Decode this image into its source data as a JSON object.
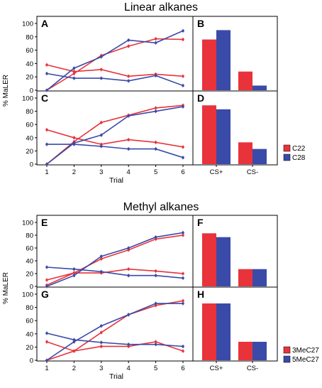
{
  "colors": {
    "red": "#e8333b",
    "blue": "#3a4aa8"
  },
  "chart_data": [
    {
      "group": "Linear alkanes",
      "panel": "A",
      "type": "line",
      "title": "Linear alkanes",
      "xlabel": "",
      "ylabel": "% MaLER",
      "x": [
        1,
        2,
        3,
        4,
        5,
        6
      ],
      "xlim": [
        0.7,
        6.3
      ],
      "ylim": [
        0,
        100
      ],
      "yticks": [
        0,
        20,
        40,
        60,
        80,
        100
      ],
      "series": [
        {
          "name": "C22",
          "role": "CS+",
          "color": "red",
          "values": [
            0,
            25,
            52,
            66,
            77,
            76
          ]
        },
        {
          "name": "C22",
          "role": "CS-",
          "color": "red",
          "values": [
            38,
            28,
            31,
            21,
            24,
            21
          ]
        },
        {
          "name": "C28",
          "role": "CS+",
          "color": "blue",
          "values": [
            0,
            33,
            50,
            75,
            71,
            89
          ]
        },
        {
          "name": "C28",
          "role": "CS-",
          "color": "blue",
          "values": [
            25,
            18,
            18,
            14,
            22,
            7
          ]
        }
      ]
    },
    {
      "group": "Linear alkanes",
      "panel": "B",
      "type": "bar",
      "categories": [
        "CS+",
        "CS-"
      ],
      "ylim": [
        0,
        100
      ],
      "show_xticks": false,
      "series": [
        {
          "name": "C22",
          "color": "red",
          "values": [
            76,
            28
          ]
        },
        {
          "name": "C28",
          "color": "blue",
          "values": [
            90,
            7
          ]
        }
      ]
    },
    {
      "group": "Linear alkanes",
      "panel": "C",
      "type": "line",
      "xlabel": "Trial",
      "ylabel": "% MaLER",
      "x": [
        1,
        2,
        3,
        4,
        5,
        6
      ],
      "xlim": [
        0.7,
        6.3
      ],
      "ylim": [
        0,
        100
      ],
      "yticks": [
        0,
        20,
        40,
        60,
        80,
        100
      ],
      "series": [
        {
          "name": "C22",
          "role": "CS+",
          "color": "red",
          "values": [
            0,
            34,
            63,
            74,
            85,
            89
          ]
        },
        {
          "name": "C22",
          "role": "CS-",
          "color": "red",
          "values": [
            52,
            40,
            30,
            37,
            33,
            26
          ]
        },
        {
          "name": "C28",
          "role": "CS+",
          "color": "blue",
          "values": [
            0,
            32,
            44,
            73,
            80,
            87
          ]
        },
        {
          "name": "C28",
          "role": "CS-",
          "color": "blue",
          "values": [
            30,
            30,
            27,
            23,
            23,
            10
          ]
        }
      ]
    },
    {
      "group": "Linear alkanes",
      "panel": "D",
      "type": "bar",
      "categories": [
        "CS+",
        "CS-"
      ],
      "ylim": [
        0,
        100
      ],
      "show_xticks": true,
      "series": [
        {
          "name": "C22",
          "color": "red",
          "values": [
            89,
            33
          ]
        },
        {
          "name": "C28",
          "color": "blue",
          "values": [
            83,
            23
          ]
        }
      ]
    },
    {
      "group": "Methyl alkanes",
      "panel": "E",
      "type": "line",
      "title": "Methyl alkanes",
      "xlabel": "",
      "ylabel": "% MaLER",
      "x": [
        1,
        2,
        3,
        4,
        5,
        6
      ],
      "xlim": [
        0.7,
        6.3
      ],
      "ylim": [
        0,
        100
      ],
      "yticks": [
        0,
        20,
        40,
        60,
        80,
        100
      ],
      "series": [
        {
          "name": "3MeC27",
          "role": "CS+",
          "color": "red",
          "values": [
            2,
            21,
            43,
            57,
            74,
            80
          ]
        },
        {
          "name": "3MeC27",
          "role": "CS-",
          "color": "red",
          "values": [
            10,
            21,
            21,
            27,
            24,
            20
          ]
        },
        {
          "name": "5MeC27",
          "role": "CS+",
          "color": "blue",
          "values": [
            0,
            17,
            47,
            60,
            77,
            84
          ]
        },
        {
          "name": "5MeC27",
          "role": "CS-",
          "color": "blue",
          "values": [
            30,
            27,
            23,
            17,
            17,
            13
          ]
        }
      ]
    },
    {
      "group": "Methyl alkanes",
      "panel": "F",
      "type": "bar",
      "categories": [
        "CS+",
        "CS-"
      ],
      "ylim": [
        0,
        100
      ],
      "show_xticks": false,
      "series": [
        {
          "name": "3MeC27",
          "color": "red",
          "values": [
            83,
            27
          ]
        },
        {
          "name": "5MeC27",
          "color": "blue",
          "values": [
            77,
            27
          ]
        }
      ]
    },
    {
      "group": "Methyl alkanes",
      "panel": "G",
      "type": "line",
      "xlabel": "Trial",
      "ylabel": "% MaLER",
      "x": [
        1,
        2,
        3,
        4,
        5,
        6
      ],
      "xlim": [
        0.7,
        6.3
      ],
      "ylim": [
        0,
        100
      ],
      "yticks": [
        0,
        20,
        40,
        60,
        80,
        100
      ],
      "series": [
        {
          "name": "3MeC27",
          "role": "CS+",
          "color": "red",
          "values": [
            0,
            14,
            42,
            69,
            83,
            90
          ]
        },
        {
          "name": "3MeC27",
          "role": "CS-",
          "color": "red",
          "values": [
            28,
            14,
            21,
            21,
            28,
            14
          ]
        },
        {
          "name": "5MeC27",
          "role": "CS+",
          "color": "blue",
          "values": [
            0,
            28,
            52,
            69,
            86,
            86
          ]
        },
        {
          "name": "5MeC27",
          "role": "CS-",
          "color": "blue",
          "values": [
            41,
            31,
            27,
            24,
            24,
            21
          ]
        }
      ]
    },
    {
      "group": "Methyl alkanes",
      "panel": "H",
      "type": "bar",
      "categories": [
        "CS+",
        "CS-"
      ],
      "ylim": [
        0,
        100
      ],
      "show_xticks": true,
      "series": [
        {
          "name": "3MeC27",
          "color": "red",
          "values": [
            86,
            28
          ]
        },
        {
          "name": "5MeC27",
          "color": "blue",
          "values": [
            86,
            28
          ]
        }
      ]
    }
  ],
  "legends": [
    {
      "group": "Linear alkanes",
      "entries": [
        {
          "name": "C22",
          "color": "red"
        },
        {
          "name": "C28",
          "color": "blue"
        }
      ]
    },
    {
      "group": "Methyl alkanes",
      "entries": [
        {
          "name": "3MeC27",
          "color": "red"
        },
        {
          "name": "5MeC27",
          "color": "blue"
        }
      ]
    }
  ]
}
